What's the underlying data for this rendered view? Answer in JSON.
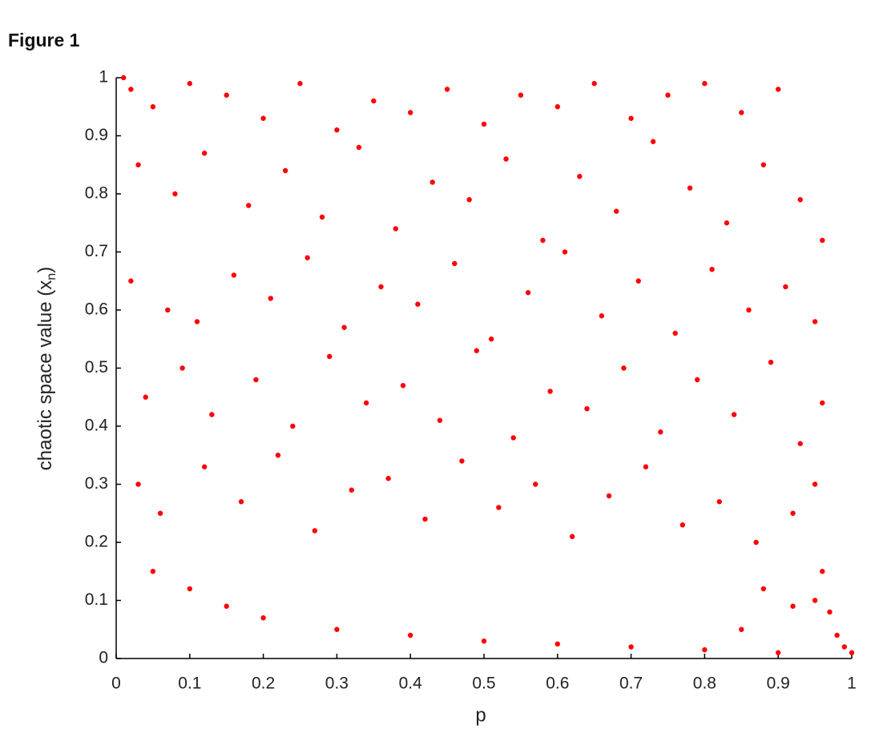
{
  "figure_label": "Figure 1",
  "chart_data": {
    "type": "scatter",
    "xlabel": "p",
    "ylabel": "chaotic space value (x",
    "ylabel_sub": "n",
    "ylabel_end": ")",
    "xlim": [
      0,
      1
    ],
    "ylim": [
      0,
      1
    ],
    "xticks": [
      0,
      0.1,
      0.2,
      0.3,
      0.4,
      0.5,
      0.6,
      0.7,
      0.8,
      0.9,
      1
    ],
    "yticks": [
      0,
      0.1,
      0.2,
      0.3,
      0.4,
      0.5,
      0.6,
      0.7,
      0.8,
      0.9,
      1
    ],
    "grid": false,
    "series": [
      {
        "color": "#ff0000",
        "x": [
          0.01,
          0.02,
          0.05,
          0.1,
          0.15,
          0.2,
          0.25,
          0.3,
          0.35,
          0.4,
          0.45,
          0.5,
          0.55,
          0.6,
          0.65,
          0.7,
          0.75,
          0.8,
          0.85,
          0.9,
          0.03,
          0.08,
          0.12,
          0.18,
          0.23,
          0.28,
          0.33,
          0.38,
          0.43,
          0.48,
          0.53,
          0.58,
          0.63,
          0.68,
          0.73,
          0.78,
          0.83,
          0.88,
          0.93,
          0.96,
          0.02,
          0.07,
          0.11,
          0.16,
          0.21,
          0.26,
          0.31,
          0.36,
          0.41,
          0.46,
          0.51,
          0.56,
          0.61,
          0.66,
          0.71,
          0.76,
          0.81,
          0.86,
          0.91,
          0.95,
          0.04,
          0.09,
          0.13,
          0.19,
          0.24,
          0.29,
          0.34,
          0.39,
          0.44,
          0.49,
          0.54,
          0.59,
          0.64,
          0.69,
          0.74,
          0.79,
          0.84,
          0.89,
          0.93,
          0.96,
          0.03,
          0.06,
          0.12,
          0.17,
          0.22,
          0.27,
          0.32,
          0.37,
          0.42,
          0.47,
          0.52,
          0.57,
          0.62,
          0.67,
          0.72,
          0.77,
          0.82,
          0.87,
          0.92,
          0.95,
          0.05,
          0.1,
          0.15,
          0.2,
          0.3,
          0.4,
          0.5,
          0.6,
          0.7,
          0.8,
          0.9,
          0.95,
          0.96,
          0.97,
          0.98,
          0.99,
          1,
          0.85,
          0.88,
          0.92
        ],
        "values": [
          1,
          0.98,
          0.95,
          0.99,
          0.97,
          0.93,
          0.99,
          0.91,
          0.96,
          0.94,
          0.98,
          0.92,
          0.97,
          0.95,
          0.99,
          0.93,
          0.97,
          0.99,
          0.94,
          0.98,
          0.85,
          0.8,
          0.87,
          0.78,
          0.84,
          0.76,
          0.88,
          0.74,
          0.82,
          0.79,
          0.86,
          0.72,
          0.83,
          0.77,
          0.89,
          0.81,
          0.75,
          0.85,
          0.79,
          0.72,
          0.65,
          0.6,
          0.58,
          0.66,
          0.62,
          0.69,
          0.57,
          0.64,
          0.61,
          0.68,
          0.55,
          0.63,
          0.7,
          0.59,
          0.65,
          0.56,
          0.67,
          0.6,
          0.64,
          0.58,
          0.45,
          0.5,
          0.42,
          0.48,
          0.4,
          0.52,
          0.44,
          0.47,
          0.41,
          0.53,
          0.38,
          0.46,
          0.43,
          0.5,
          0.39,
          0.48,
          0.42,
          0.51,
          0.37,
          0.44,
          0.3,
          0.25,
          0.33,
          0.27,
          0.35,
          0.22,
          0.29,
          0.31,
          0.24,
          0.34,
          0.26,
          0.3,
          0.21,
          0.28,
          0.33,
          0.23,
          0.27,
          0.2,
          0.25,
          0.3,
          0.15,
          0.12,
          0.09,
          0.07,
          0.05,
          0.04,
          0.03,
          0.025,
          0.02,
          0.015,
          0.01,
          0.1,
          0.15,
          0.08,
          0.04,
          0.02,
          0.01,
          0.05,
          0.12,
          0.09
        ]
      }
    ]
  }
}
